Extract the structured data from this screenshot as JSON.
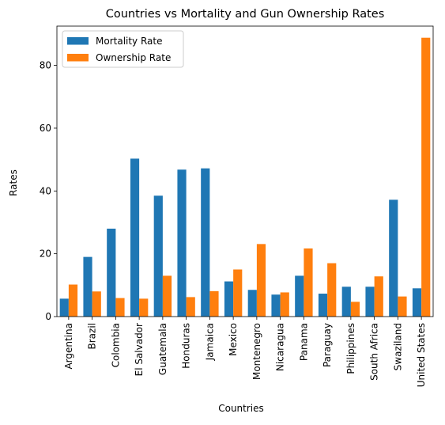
{
  "chart_data": {
    "type": "bar",
    "title": "Countries vs Mortality and Gun Ownership Rates",
    "xlabel": "Countries",
    "ylabel": "Rates",
    "ylim": [
      0,
      92.5
    ],
    "yticks": [
      0,
      20,
      40,
      60,
      80
    ],
    "grid": false,
    "legend_position": "top-left",
    "categories": [
      "Argentina",
      "Brazil",
      "Colombia",
      "El Salvador",
      "Guatemala",
      "Honduras",
      "Jamaica",
      "Mexico",
      "Montenegro",
      "Nicaragua",
      "Panama",
      "Paraguay",
      "Philippines",
      "South Africa",
      "Swaziland",
      "United States"
    ],
    "series": [
      {
        "name": "Mortality Rate",
        "color": "#1f77b4",
        "values": [
          5.7,
          19.0,
          28.0,
          50.3,
          38.5,
          46.8,
          47.2,
          11.2,
          8.5,
          7.0,
          13.0,
          7.3,
          9.5,
          9.5,
          37.2,
          9.0
        ]
      },
      {
        "name": "Ownership Rate",
        "color": "#ff7f0e",
        "values": [
          10.2,
          8.0,
          5.9,
          5.7,
          13.0,
          6.2,
          8.1,
          15.0,
          23.1,
          7.7,
          21.7,
          17.0,
          4.7,
          12.8,
          6.4,
          88.8
        ]
      }
    ]
  }
}
